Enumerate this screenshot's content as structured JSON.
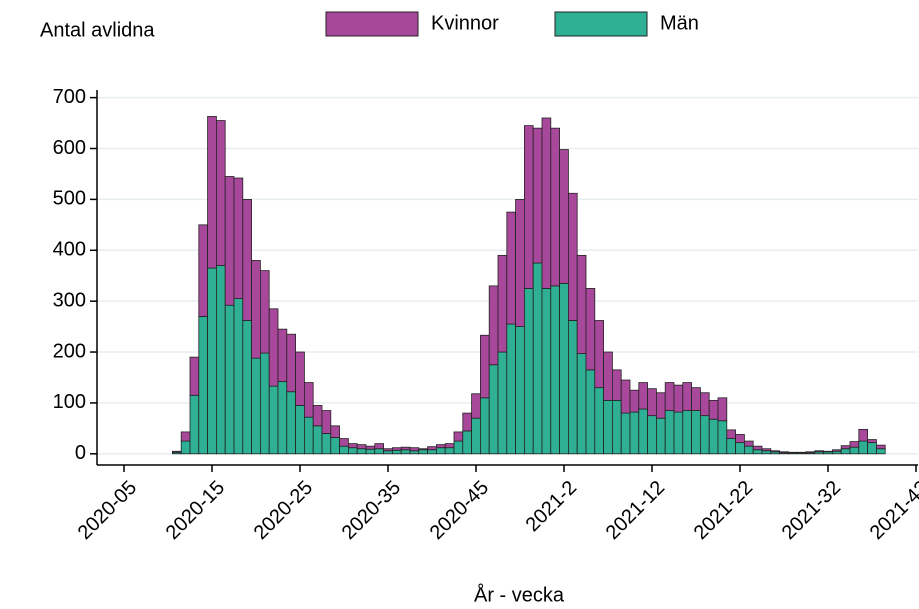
{
  "chart_data": {
    "type": "stacked_bar",
    "y_axis_title": "Antal avlidna",
    "x_axis_title": "År - vecka",
    "categories": [
      "2020-05",
      null,
      null,
      null,
      null,
      null,
      null,
      null,
      null,
      null,
      "2020-15",
      null,
      null,
      null,
      null,
      null,
      null,
      null,
      null,
      null,
      "2020-25",
      null,
      null,
      null,
      null,
      null,
      null,
      null,
      null,
      null,
      "2020-35",
      null,
      null,
      null,
      null,
      null,
      null,
      null,
      null,
      null,
      "2020-45",
      null,
      null,
      null,
      null,
      null,
      null,
      null,
      null,
      null,
      "2021-2",
      null,
      null,
      null,
      null,
      null,
      null,
      null,
      null,
      null,
      "2021-12",
      null,
      null,
      null,
      null,
      null,
      null,
      null,
      null,
      null,
      "2021-22",
      null,
      null,
      null,
      null,
      null,
      null,
      null,
      null,
      null,
      "2021-32",
      null,
      null,
      null,
      null,
      null,
      null,
      null,
      null,
      null,
      "2021-42"
    ],
    "series": [
      {
        "name": "Män",
        "color": "#2fb094",
        "values": [
          null,
          null,
          null,
          null,
          null,
          null,
          3,
          25,
          115,
          270,
          365,
          370,
          292,
          305,
          262,
          188,
          198,
          133,
          142,
          122,
          95,
          72,
          55,
          40,
          32,
          15,
          12,
          10,
          9,
          10,
          6,
          7,
          8,
          6,
          8,
          8,
          12,
          12,
          25,
          45,
          70,
          110,
          175,
          200,
          255,
          250,
          325,
          375,
          325,
          330,
          335,
          262,
          197,
          165,
          130,
          105,
          105,
          80,
          82,
          88,
          75,
          70,
          85,
          82,
          85,
          85,
          75,
          68,
          65,
          30,
          22,
          15,
          8,
          6,
          4,
          2,
          2,
          2,
          2,
          4,
          4,
          5,
          10,
          13,
          25,
          22,
          10,
          null,
          null,
          null,
          null
        ]
      },
      {
        "name": "Kvinnor",
        "color": "#a8489a",
        "values": [
          null,
          null,
          null,
          null,
          null,
          null,
          2,
          18,
          75,
          180,
          298,
          285,
          253,
          237,
          238,
          192,
          162,
          152,
          103,
          113,
          105,
          68,
          40,
          45,
          23,
          15,
          8,
          8,
          6,
          10,
          4,
          5,
          5,
          6,
          2,
          6,
          6,
          8,
          18,
          35,
          48,
          123,
          155,
          190,
          220,
          250,
          320,
          265,
          335,
          310,
          263,
          250,
          193,
          160,
          132,
          95,
          60,
          65,
          43,
          52,
          53,
          50,
          55,
          53,
          55,
          45,
          45,
          37,
          45,
          17,
          16,
          10,
          7,
          4,
          2,
          2,
          1,
          1,
          2,
          2,
          1,
          3,
          6,
          11,
          23,
          6,
          7,
          null,
          null,
          null,
          null
        ]
      }
    ],
    "ylim": [
      -22,
      715
    ],
    "yticks": [
      0,
      100,
      200,
      300,
      400,
      500,
      600,
      700
    ],
    "grid": true,
    "legend": "top"
  }
}
